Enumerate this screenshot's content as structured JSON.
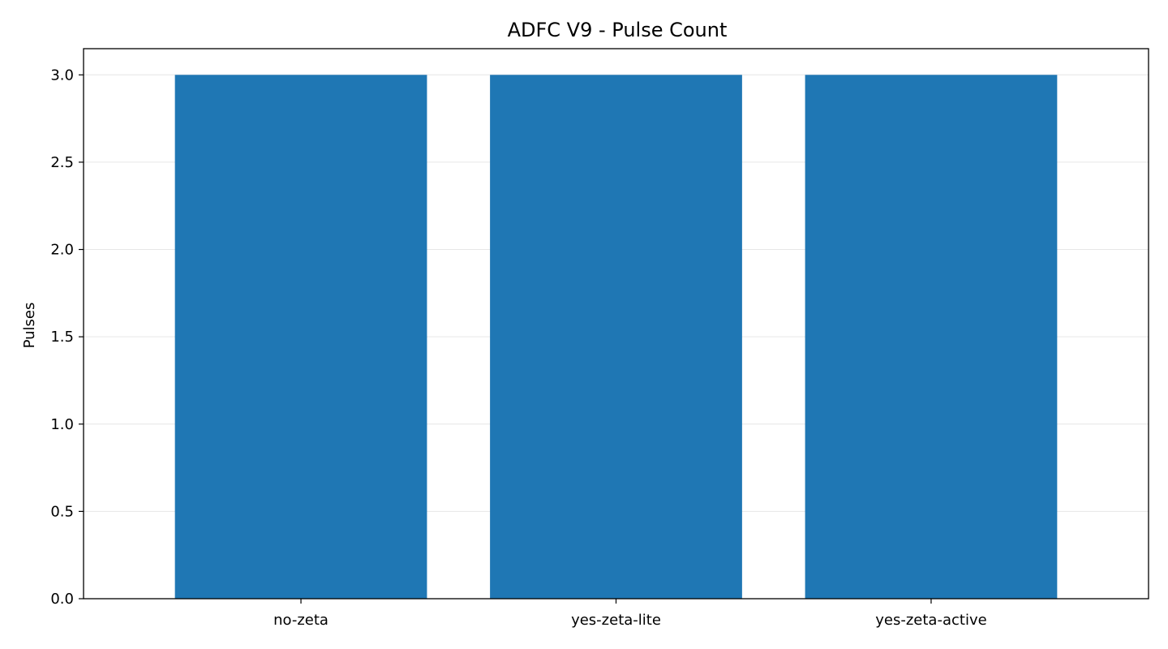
{
  "chart_data": {
    "type": "bar",
    "title": "ADFC V9 - Pulse Count",
    "xlabel": "",
    "ylabel": "Pulses",
    "categories": [
      "no-zeta",
      "yes-zeta-lite",
      "yes-zeta-active"
    ],
    "values": [
      3,
      3,
      3
    ],
    "ylim": [
      0,
      3.15
    ],
    "yticks": [
      0.0,
      0.5,
      1.0,
      1.5,
      2.0,
      2.5,
      3.0
    ],
    "ytick_labels": [
      "0.0",
      "0.5",
      "1.0",
      "1.5",
      "2.0",
      "2.5",
      "3.0"
    ],
    "grid": "y",
    "bar_color": "#1f77b4",
    "grid_color": "#e6e6e6"
  }
}
